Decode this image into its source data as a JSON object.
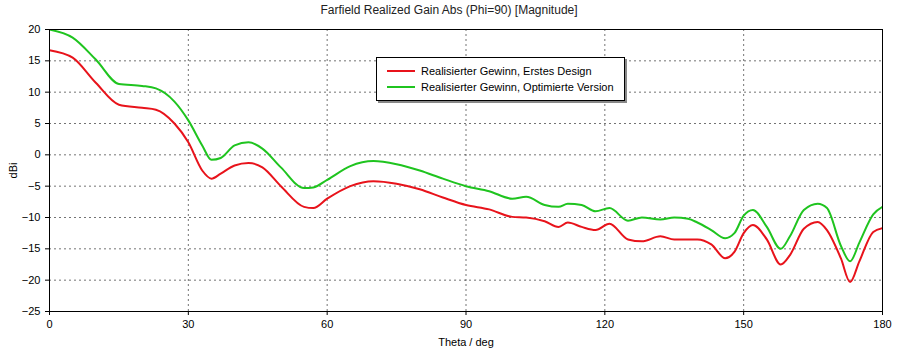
{
  "chart_data": {
    "type": "line",
    "title": "Farfield Realized Gain Abs (Phi=90) [Magnitude]",
    "x_label": "Theta / deg",
    "y_label": "dBi",
    "x": [
      0,
      5,
      10,
      15,
      20,
      23,
      27,
      30,
      33,
      35,
      37,
      40,
      43,
      46,
      50,
      55,
      57,
      60,
      65,
      70,
      75,
      80,
      85,
      90,
      95,
      100,
      103,
      107,
      110,
      112,
      115,
      118,
      121,
      125,
      128,
      132,
      135,
      138,
      140,
      143,
      146,
      148,
      150,
      152,
      155,
      158,
      160,
      163,
      166,
      168,
      171,
      173,
      175,
      178,
      180
    ],
    "series": [
      {
        "name": "Realisierter Gewinn, Erstes Design",
        "color": "#e8131b",
        "values": [
          16.7,
          15.5,
          11.5,
          8,
          7.5,
          7.2,
          5,
          2,
          -2.5,
          -3.8,
          -3,
          -1.7,
          -1.3,
          -2,
          -5,
          -8.3,
          -8.5,
          -7,
          -5,
          -4.2,
          -4.6,
          -5.5,
          -6.8,
          -8,
          -8.7,
          -9.9,
          -10,
          -10.6,
          -11.5,
          -10.8,
          -11.5,
          -12,
          -11,
          -13.5,
          -13.8,
          -13,
          -13.5,
          -13.5,
          -13.5,
          -14.3,
          -16.5,
          -15.5,
          -12.5,
          -11.2,
          -13.5,
          -17.5,
          -16,
          -11.8,
          -10.7,
          -12,
          -16.5,
          -20.3,
          -17,
          -12.3,
          -11.7
        ]
      },
      {
        "name": "Realisierter Gewinn, Optimierte Version",
        "color": "#1fc41f",
        "values": [
          20,
          18.7,
          15.2,
          11.3,
          11,
          10.6,
          8.5,
          5.5,
          1.5,
          -0.8,
          -0.5,
          1.5,
          2,
          1,
          -2,
          -5.3,
          -5.2,
          -4,
          -1.8,
          -1,
          -1.5,
          -2.5,
          -3.8,
          -5,
          -5.8,
          -7,
          -6.7,
          -8,
          -8.3,
          -7.8,
          -8,
          -9,
          -8.5,
          -10.5,
          -10,
          -10.3,
          -10,
          -10.2,
          -10.8,
          -12,
          -13.3,
          -12.5,
          -9.7,
          -8.8,
          -11.5,
          -15,
          -13,
          -8.8,
          -7.8,
          -8.5,
          -14.5,
          -17,
          -14,
          -9.5,
          -8.3
        ]
      }
    ],
    "xlim": [
      0,
      180
    ],
    "xticks": [
      0,
      30,
      60,
      90,
      120,
      150,
      180
    ],
    "ylim": [
      -25,
      20
    ],
    "yticks": [
      -25,
      -20,
      -15,
      -10,
      -5,
      0,
      5,
      10,
      15,
      20
    ],
    "grid": true,
    "legend": "upper center"
  }
}
